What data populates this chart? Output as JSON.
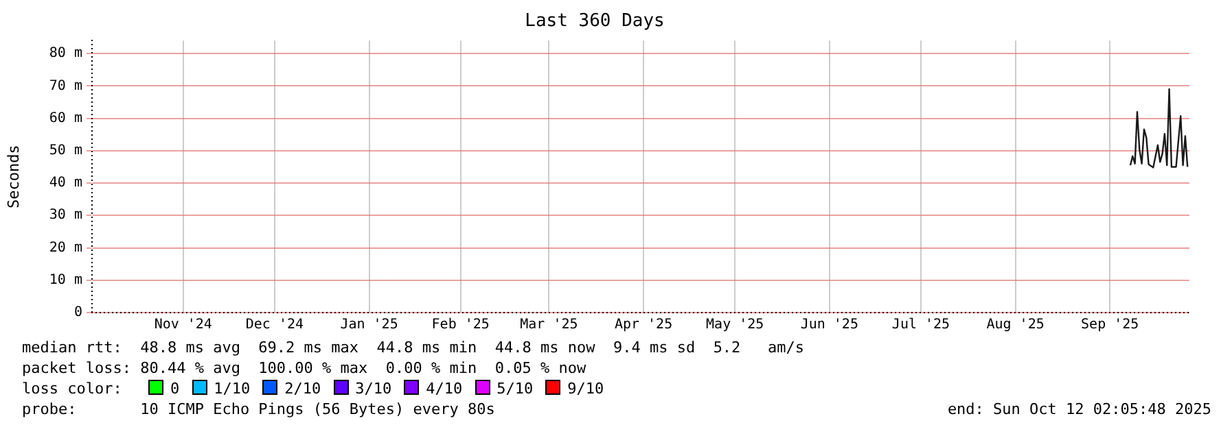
{
  "chart_data": {
    "type": "line",
    "title": "Last 360 Days",
    "ylabel": "Seconds",
    "x": [
      "2025-09-22T17:00",
      "2025-09-23T11:00",
      "2025-09-24T05:00",
      "2025-09-24T23:00",
      "2025-09-25T17:00",
      "2025-09-26T11:00",
      "2025-09-27T05:00",
      "2025-09-27T23:00",
      "2025-09-28T17:00",
      "2025-09-30T05:00",
      "2025-10-01T17:00",
      "2025-10-02T11:00",
      "2025-10-03T05:00",
      "2025-10-03T23:00",
      "2025-10-04T17:00",
      "2025-10-05T11:00",
      "2025-10-06T05:00",
      "2025-10-07T17:00",
      "2025-10-09T05:00",
      "2025-10-09T23:00",
      "2025-10-10T17:00",
      "2025-10-11T11:00"
    ],
    "series": [
      {
        "color": "#1a1a1a",
        "values": [
          45.5,
          48.3,
          46,
          62,
          50.3,
          46,
          56.6,
          54,
          45.8,
          44.8,
          51.7,
          46.5,
          49,
          55.2,
          45.5,
          69,
          45,
          45,
          60.7,
          45.5,
          54.5,
          45
        ]
      }
    ],
    "xlim": [
      "2024-10-17T02:05",
      "2025-10-12T02:05"
    ],
    "xticks": [
      {
        "value": "2024-11-16",
        "label": "Nov '24"
      },
      {
        "value": "2024-12-16",
        "label": "Dec '24"
      },
      {
        "value": "2025-01-16",
        "label": "Jan '25"
      },
      {
        "value": "2025-02-15",
        "label": "Feb '25"
      },
      {
        "value": "2025-03-16",
        "label": "Mar '25"
      },
      {
        "value": "2025-04-16",
        "label": "Apr '25"
      },
      {
        "value": "2025-05-16",
        "label": "May '25"
      },
      {
        "value": "2025-06-16",
        "label": "Jun '25"
      },
      {
        "value": "2025-07-16",
        "label": "Jul '25"
      },
      {
        "value": "2025-08-16",
        "label": "Aug '25"
      },
      {
        "value": "2025-09-16",
        "label": "Sep '25"
      }
    ],
    "ylim": [
      0,
      84
    ],
    "yticks": [
      0,
      {
        "value": 10,
        "label": "10 m"
      },
      {
        "value": 20,
        "label": "20 m"
      },
      {
        "value": 30,
        "label": "30 m"
      },
      {
        "value": 40,
        "label": "40 m"
      },
      {
        "value": 50,
        "label": "50 m"
      },
      {
        "value": 60,
        "label": "60 m"
      },
      {
        "value": 70,
        "label": "70 m"
      },
      {
        "value": 80,
        "label": "80 m"
      }
    ],
    "grid": true,
    "legend": false,
    "marker": "none",
    "line_style": "solid",
    "annotations": [
      "median rtt:  48.8 ms avg  69.2 ms max  44.8 ms min  44.8 ms now  9.4 ms sd  5.2   am/s",
      "packet loss: 80.44 % avg  100.00 % max  0.00 % min  0.05 % now",
      "loss color:",
      "0",
      "1/10",
      "2/10",
      "3/10",
      "4/10",
      "5/10",
      "9/10",
      "probe:       10 ICMP Echo Pings (56 Bytes) every 80s",
      "end: Sun Oct 12 02:05:48 2025"
    ]
  }
}
